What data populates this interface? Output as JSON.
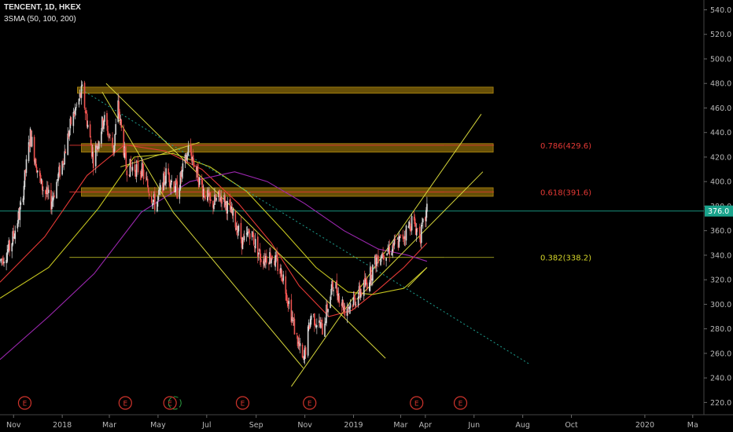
{
  "header": {
    "symbol_line": "TENCENT, 1D, HKEX",
    "indicator_line": "3SMA (50, 100, 200)"
  },
  "colors": {
    "background": "#000000",
    "up_candle": "#d9d9d9",
    "down_candle": "#ef5350",
    "sma50": "#e53935",
    "sma100": "#c6c61f",
    "sma200": "#9c27b0",
    "trendline": "#d4d43a",
    "zone": "#8a6a0a",
    "fib_red": "#e53935",
    "fib_yellow": "#d6d62a",
    "price_line": "#1aa38c",
    "earnings": "#d0342c"
  },
  "chart_data": {
    "type": "line",
    "title": "TENCENT, 1D, HKEX",
    "ylim": [
      210,
      548
    ],
    "y_ticks": [
      220,
      240,
      260,
      280,
      300,
      320,
      340,
      360,
      380,
      400,
      420,
      440,
      460,
      480,
      500,
      520,
      540
    ],
    "y_tick_labels": [
      "220.0",
      "240.0",
      "260.0",
      "280.0",
      "300.0",
      "320.0",
      "340.0",
      "360.0",
      "380.0",
      "400.0",
      "420.0",
      "440.0",
      "460.0",
      "480.0",
      "500.0",
      "520.0",
      "540.0"
    ],
    "x_range": [
      "2017-10-15",
      "2020-03-15"
    ],
    "x_ticks": [
      {
        "label": "Nov",
        "date": "2017-11-01"
      },
      {
        "label": "2018",
        "date": "2018-01-01"
      },
      {
        "label": "Mar",
        "date": "2018-03-01"
      },
      {
        "label": "May",
        "date": "2018-05-01"
      },
      {
        "label": "Jul",
        "date": "2018-07-01"
      },
      {
        "label": "Sep",
        "date": "2018-09-01"
      },
      {
        "label": "Nov",
        "date": "2018-11-01"
      },
      {
        "label": "2019",
        "date": "2019-01-01"
      },
      {
        "label": "Mar",
        "date": "2019-03-01"
      },
      {
        "label": "Apr",
        "date": "2019-04-01"
      },
      {
        "label": "Jun",
        "date": "2019-06-01"
      },
      {
        "label": "Aug",
        "date": "2019-08-01"
      },
      {
        "label": "Oct",
        "date": "2019-10-01"
      },
      {
        "label": "2020",
        "date": "2020-01-01"
      },
      {
        "label": "Ma",
        "date": "2020-03-01"
      }
    ],
    "price_path": [
      [
        "2017-10-15",
        335
      ],
      [
        "2017-10-28",
        347
      ],
      [
        "2017-11-10",
        378
      ],
      [
        "2017-11-22",
        438
      ],
      [
        "2017-12-05",
        398
      ],
      [
        "2017-12-18",
        383
      ],
      [
        "2018-01-02",
        418
      ],
      [
        "2018-01-12",
        448
      ],
      [
        "2018-01-26",
        474
      ],
      [
        "2018-02-09",
        418
      ],
      [
        "2018-02-22",
        452
      ],
      [
        "2018-03-06",
        426
      ],
      [
        "2018-03-12",
        462
      ],
      [
        "2018-03-22",
        412
      ],
      [
        "2018-04-10",
        410
      ],
      [
        "2018-04-28",
        380
      ],
      [
        "2018-05-12",
        408
      ],
      [
        "2018-05-25",
        392
      ],
      [
        "2018-06-09",
        428
      ],
      [
        "2018-06-22",
        400
      ],
      [
        "2018-07-06",
        381
      ],
      [
        "2018-07-20",
        388
      ],
      [
        "2018-08-04",
        370
      ],
      [
        "2018-08-16",
        349
      ],
      [
        "2018-08-24",
        360
      ],
      [
        "2018-09-07",
        338
      ],
      [
        "2018-09-21",
        340
      ],
      [
        "2018-10-05",
        322
      ],
      [
        "2018-10-19",
        280
      ],
      [
        "2018-10-30",
        252
      ],
      [
        "2018-11-09",
        292
      ],
      [
        "2018-11-23",
        280
      ],
      [
        "2018-12-07",
        318
      ],
      [
        "2018-12-21",
        296
      ],
      [
        "2019-01-04",
        305
      ],
      [
        "2019-01-18",
        318
      ],
      [
        "2019-02-01",
        340
      ],
      [
        "2019-02-15",
        345
      ],
      [
        "2019-03-01",
        352
      ],
      [
        "2019-03-15",
        368
      ],
      [
        "2019-03-26",
        356
      ],
      [
        "2019-04-03",
        376
      ]
    ],
    "series": [
      {
        "name": "SMA 50",
        "points": [
          [
            "2017-10-15",
            318
          ],
          [
            "2017-12-10",
            355
          ],
          [
            "2018-02-01",
            405
          ],
          [
            "2018-03-20",
            430
          ],
          [
            "2018-05-10",
            425
          ],
          [
            "2018-06-25",
            410
          ],
          [
            "2018-08-10",
            382
          ],
          [
            "2018-09-20",
            350
          ],
          [
            "2018-10-25",
            315
          ],
          [
            "2018-12-01",
            290
          ],
          [
            "2018-12-30",
            295
          ],
          [
            "2019-02-01",
            312
          ],
          [
            "2019-03-05",
            330
          ],
          [
            "2019-04-03",
            350
          ]
        ]
      },
      {
        "name": "SMA 100",
        "points": [
          [
            "2017-10-15",
            305
          ],
          [
            "2017-12-15",
            330
          ],
          [
            "2018-02-15",
            378
          ],
          [
            "2018-04-01",
            420
          ],
          [
            "2018-05-20",
            423
          ],
          [
            "2018-07-05",
            412
          ],
          [
            "2018-08-20",
            392
          ],
          [
            "2018-10-05",
            360
          ],
          [
            "2018-11-15",
            330
          ],
          [
            "2018-12-25",
            310
          ],
          [
            "2019-01-25",
            308
          ],
          [
            "2019-03-05",
            313
          ],
          [
            "2019-04-03",
            330
          ]
        ]
      },
      {
        "name": "SMA 200",
        "points": [
          [
            "2017-10-15",
            255
          ],
          [
            "2017-12-15",
            290
          ],
          [
            "2018-02-10",
            325
          ],
          [
            "2018-04-10",
            375
          ],
          [
            "2018-06-10",
            400
          ],
          [
            "2018-08-05",
            408
          ],
          [
            "2018-09-15",
            400
          ],
          [
            "2018-11-01",
            382
          ],
          [
            "2018-12-20",
            360
          ],
          [
            "2019-02-01",
            345
          ],
          [
            "2019-03-10",
            340
          ],
          [
            "2019-04-03",
            335
          ]
        ]
      }
    ],
    "last_price_label": "376.0",
    "last_price": 376,
    "zones": [
      {
        "from": "2018-01-20",
        "to": "2019-06-25",
        "low": 472,
        "high": 477
      },
      {
        "from": "2018-01-25",
        "to": "2019-06-25",
        "low": 424,
        "high": 431
      },
      {
        "from": "2018-01-25",
        "to": "2019-06-25",
        "low": 388,
        "high": 395
      }
    ],
    "fib_levels": [
      {
        "label": "0.786(429.6)",
        "value": 429.6,
        "color": "red"
      },
      {
        "label": "0.618(391.6)",
        "value": 391.6,
        "color": "red"
      },
      {
        "label": "0.382(338.2)",
        "value": 338.2,
        "color": "yellow"
      }
    ],
    "trendlines": [
      {
        "from": [
          "2018-02-25",
          480
        ],
        "to": [
          "2019-02-10",
          256
        ],
        "style": "solid"
      },
      {
        "from": [
          "2018-02-20",
          473
        ],
        "to": [
          "2018-05-20",
          375
        ],
        "style": "solid"
      },
      {
        "from": [
          "2018-05-20",
          375
        ],
        "to": [
          "2018-10-30",
          248
        ],
        "style": "solid"
      },
      {
        "from": [
          "2018-10-15",
          233
        ],
        "to": [
          "2019-06-10",
          455
        ],
        "style": "solid"
      },
      {
        "from": [
          "2019-01-05",
          304
        ],
        "to": [
          "2019-06-12",
          408
        ],
        "style": "solid"
      },
      {
        "from": [
          "2018-03-15",
          412
        ],
        "to": [
          "2018-06-22",
          432
        ],
        "style": "solid"
      },
      {
        "from": [
          "2019-03-10",
          314
        ],
        "to": [
          "2019-04-03",
          330
        ],
        "style": "solid"
      },
      {
        "from": [
          "2018-01-25",
          475
        ],
        "to": [
          "2019-08-10",
          251
        ],
        "style": "dotted"
      }
    ],
    "earnings_markers": [
      {
        "label": "E",
        "date": "2017-11-15"
      },
      {
        "label": "E",
        "date": "2018-03-21"
      },
      {
        "label": "E",
        "date": "2018-05-16"
      },
      {
        "label": "E",
        "date": "2018-08-15"
      },
      {
        "label": "E",
        "date": "2018-11-07"
      },
      {
        "label": "E",
        "date": "2019-03-21"
      },
      {
        "label": "E",
        "date": "2019-05-15"
      }
    ],
    "dividend_marker": {
      "date": "2018-05-22"
    }
  }
}
